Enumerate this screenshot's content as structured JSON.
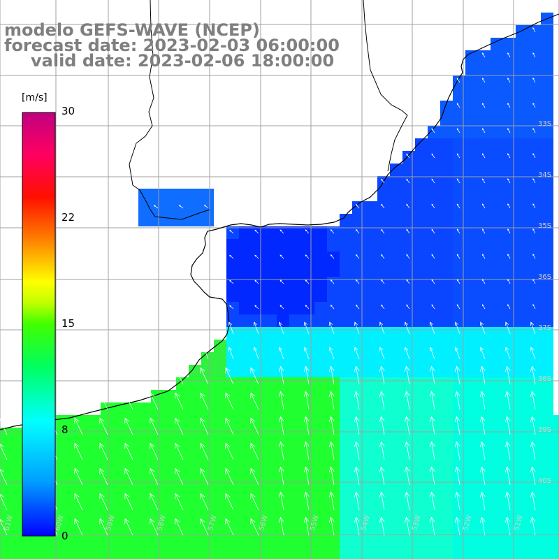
{
  "title": {
    "line1": "modelo GEFS-WAVE (NCEP)",
    "line2": "forecast date: 2023-02-03 06:00:00",
    "line3": "valid date: 2023-02-06 18:00:00"
  },
  "colorbar": {
    "unit": "[m/s]",
    "ticks": [
      {
        "value": 30,
        "label": "30"
      },
      {
        "value": 22,
        "label": "22"
      },
      {
        "value": 15,
        "label": "15"
      },
      {
        "value": 8,
        "label": "8"
      },
      {
        "value": 0,
        "label": "0"
      }
    ],
    "range": [
      0,
      30
    ],
    "colors": [
      "#0000ff",
      "#00b4ff",
      "#00ffff",
      "#00ff40",
      "#80ff00",
      "#ffff00",
      "#ff8000",
      "#ff0000",
      "#ff0080",
      "#c00080"
    ]
  },
  "map": {
    "sea_background": "#ffffff",
    "land_color": "#ffffff",
    "grid_color": "#a0a0a0",
    "lat_labels": [
      "33S",
      "34S",
      "35S",
      "36S",
      "37S",
      "38S",
      "39S",
      "40S"
    ],
    "lon_labels": [
      "61W",
      "60W",
      "59W",
      "58W",
      "57W",
      "56W",
      "55W",
      "54W",
      "53W",
      "52W",
      "51W"
    ],
    "legend_colors": {
      "weak": "#0040ff",
      "medium": "#00ffff",
      "strong": "#00ff00"
    }
  }
}
